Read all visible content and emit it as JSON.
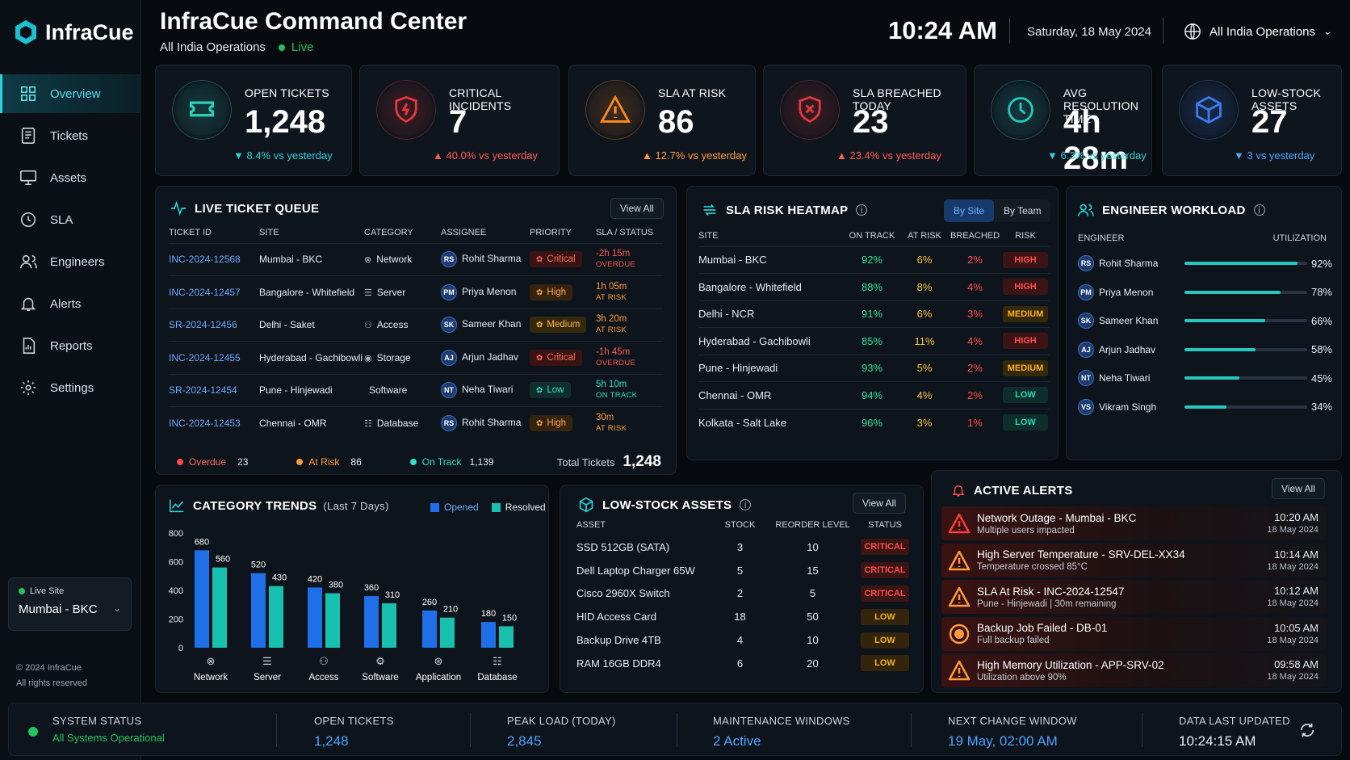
{
  "app": {
    "name": "InfraCue"
  },
  "nav": [
    {
      "label": "Overview",
      "icon": "grid-icon"
    },
    {
      "label": "Tickets",
      "icon": "ticket-icon"
    },
    {
      "label": "Assets",
      "icon": "monitor-icon"
    },
    {
      "label": "SLA",
      "icon": "clock-icon"
    },
    {
      "label": "Engineers",
      "icon": "users-icon"
    },
    {
      "label": "Alerts",
      "icon": "bell-icon"
    },
    {
      "label": "Reports",
      "icon": "report-icon"
    },
    {
      "label": "Settings",
      "icon": "gear-icon"
    }
  ],
  "live_site": {
    "label": "Live Site",
    "value": "Mumbai - BKC"
  },
  "copyright": {
    "line1": "© 2024 InfraCue",
    "line2": "All rights reserved"
  },
  "header": {
    "title": "InfraCue Command Center",
    "subtitle": "All India Operations",
    "live": "Live",
    "time": "10:24 AM",
    "date": "Saturday, 18 May 2024",
    "scope": "All India Operations"
  },
  "kpis": [
    {
      "label": "OPEN TICKETS",
      "value": "1,248",
      "delta": "▼ 8.4% vs yesterday",
      "delta_color": "#2ed0d9",
      "accent": "#2ad1b9"
    },
    {
      "label": "CRITICAL INCIDENTS",
      "value": "7",
      "delta": "▲ 40.0% vs yesterday",
      "delta_color": "#ff5a4f",
      "accent": "#e5393a"
    },
    {
      "label": "SLA AT RISK",
      "value": "86",
      "delta": "▲ 12.7% vs yesterday",
      "delta_color": "#ff9a3c",
      "accent": "#ff8a1f"
    },
    {
      "label": "SLA BREACHED TODAY",
      "value": "23",
      "delta": "▲ 23.4% vs yesterday",
      "delta_color": "#ff5a4f",
      "accent": "#e5393a"
    },
    {
      "label": "AVG RESOLUTION TIME",
      "value": "4h 28m",
      "delta": "▼ 6.3% vs yesterday",
      "delta_color": "#2ed0d9",
      "accent": "#27c7c0"
    },
    {
      "label": "LOW-STOCK ASSETS",
      "value": "27",
      "delta": "▼ 3 vs yesterday",
      "delta_color": "#4aa3ff",
      "accent": "#3d7cf0"
    }
  ],
  "queue": {
    "title": "LIVE TICKET QUEUE",
    "view_all": "View All",
    "headers": [
      "TICKET ID",
      "SITE",
      "CATEGORY",
      "ASSIGNEE",
      "PRIORITY",
      "SLA / STATUS"
    ],
    "rows": [
      {
        "id": "INC-2024-12568",
        "site": "Mumbai - BKC",
        "category": "Network",
        "cat_icon": "network-icon",
        "initials": "RS",
        "assignee": "Rohit Sharma",
        "priority": "Critical",
        "pclass": "critical",
        "sla": "-2h 15m",
        "status": "OVERDUE",
        "scolor": "#ff5a4f"
      },
      {
        "id": "INC-2024-12457",
        "site": "Bangalore - Whitefield",
        "category": "Server",
        "cat_icon": "server-icon",
        "initials": "PM",
        "assignee": "Priya Menon",
        "priority": "High",
        "pclass": "high",
        "sla": "1h 05m",
        "status": "AT RISK",
        "scolor": "#ff9a3c"
      },
      {
        "id": "SR-2024-12456",
        "site": "Delhi - Saket",
        "category": "Access",
        "cat_icon": "access-icon",
        "initials": "SK",
        "assignee": "Sameer Khan",
        "priority": "Medium",
        "pclass": "medium",
        "sla": "3h 20m",
        "status": "AT RISK",
        "scolor": "#ff9a3c"
      },
      {
        "id": "INC-2024-12455",
        "site": "Hyderabad - Gachibowli",
        "category": "Storage",
        "cat_icon": "storage-icon",
        "initials": "AJ",
        "assignee": "Arjun Jadhav",
        "priority": "Critical",
        "pclass": "critical",
        "sla": "-1h 45m",
        "status": "OVERDUE",
        "scolor": "#ff5a4f"
      },
      {
        "id": "SR-2024-12454",
        "site": "Pune - Hinjewadi",
        "category": "Software",
        "cat_icon": "code-icon",
        "initials": "NT",
        "assignee": "Neha Tiwari",
        "priority": "Low",
        "pclass": "low",
        "sla": "5h 10m",
        "status": "ON TRACK",
        "scolor": "#2ee0c8"
      },
      {
        "id": "INC-2024-12453",
        "site": "Chennai - OMR",
        "category": "Database",
        "cat_icon": "database-icon",
        "initials": "RS",
        "assignee": "Rohit Sharma",
        "priority": "High",
        "pclass": "high",
        "sla": "30m",
        "status": "AT RISK",
        "scolor": "#ff9a3c"
      }
    ],
    "footer": {
      "overdue_label": "Overdue",
      "overdue": "23",
      "atrisk_label": "At Risk",
      "atrisk": "86",
      "ontrack_label": "On Track",
      "ontrack": "1,139",
      "total_label": "Total Tickets",
      "total": "1,248"
    }
  },
  "heatmap": {
    "title": "SLA RISK HEATMAP",
    "tab1": "By Site",
    "tab2": "By Team",
    "headers": [
      "SITE",
      "ON TRACK",
      "AT RISK",
      "BREACHED",
      "RISK"
    ],
    "rows": [
      {
        "site": "Mumbai - BKC",
        "on": "92%",
        "at": "6%",
        "br": "2%",
        "risk": "HIGH"
      },
      {
        "site": "Bangalore - Whitefield",
        "on": "88%",
        "at": "8%",
        "br": "4%",
        "risk": "HIGH"
      },
      {
        "site": "Delhi - NCR",
        "on": "91%",
        "at": "6%",
        "br": "3%",
        "risk": "MEDIUM"
      },
      {
        "site": "Hyderabad - Gachibowli",
        "on": "85%",
        "at": "11%",
        "br": "4%",
        "risk": "HIGH"
      },
      {
        "site": "Pune - Hinjewadi",
        "on": "93%",
        "at": "5%",
        "br": "2%",
        "risk": "MEDIUM"
      },
      {
        "site": "Chennai - OMR",
        "on": "94%",
        "at": "4%",
        "br": "2%",
        "risk": "LOW"
      },
      {
        "site": "Kolkata - Salt Lake",
        "on": "96%",
        "at": "3%",
        "br": "1%",
        "risk": "LOW"
      }
    ]
  },
  "workload": {
    "title": "ENGINEER WORKLOAD",
    "col1": "ENGINEER",
    "col2": "UTILIZATION",
    "rows": [
      {
        "initials": "RS",
        "name": "Rohit Sharma",
        "util": "92%",
        "pct": 92
      },
      {
        "initials": "PM",
        "name": "Priya Menon",
        "util": "78%",
        "pct": 78
      },
      {
        "initials": "SK",
        "name": "Sameer Khan",
        "util": "66%",
        "pct": 66
      },
      {
        "initials": "AJ",
        "name": "Arjun Jadhav",
        "util": "58%",
        "pct": 58
      },
      {
        "initials": "NT",
        "name": "Neha Tiwari",
        "util": "45%",
        "pct": 45
      },
      {
        "initials": "VS",
        "name": "Vikram Singh",
        "util": "34%",
        "pct": 34
      }
    ]
  },
  "trends": {
    "title": "CATEGORY TRENDS",
    "subtitle": "(Last 7 Days)",
    "icons": [
      "network-icon",
      "server-icon",
      "access-icon",
      "software-icon",
      "application-icon",
      "database-icon"
    ]
  },
  "chart_data": {
    "type": "bar",
    "categories": [
      "Network",
      "Server",
      "Access",
      "Software",
      "Application",
      "Database"
    ],
    "series": [
      {
        "name": "Opened",
        "values": [
          680,
          520,
          420,
          360,
          260,
          180
        ],
        "color": "#1f6fe8"
      },
      {
        "name": "Resolved",
        "values": [
          560,
          430,
          380,
          310,
          210,
          150
        ],
        "color": "#18c0b0"
      }
    ],
    "yticks": [
      "800",
      "600",
      "400",
      "200",
      "0"
    ],
    "ylim": [
      0,
      800
    ],
    "legend": "top-right",
    "grid": false
  },
  "stock": {
    "title": "LOW-STOCK ASSETS",
    "view_all": "View All",
    "headers": [
      "ASSET",
      "STOCK",
      "REORDER LEVEL",
      "STATUS"
    ],
    "rows": [
      {
        "asset": "SSD 512GB (SATA)",
        "stock": "3",
        "reorder": "10",
        "status": "CRITICAL"
      },
      {
        "asset": "Dell Laptop Charger 65W",
        "stock": "5",
        "reorder": "15",
        "status": "CRITICAL"
      },
      {
        "asset": "Cisco 2960X Switch",
        "stock": "2",
        "reorder": "5",
        "status": "CRITICAL"
      },
      {
        "asset": "HID Access Card",
        "stock": "18",
        "reorder": "50",
        "status": "LOW"
      },
      {
        "asset": "Backup Drive 4TB",
        "stock": "4",
        "reorder": "10",
        "status": "LOW"
      },
      {
        "asset": "RAM 16GB DDR4",
        "stock": "6",
        "reorder": "20",
        "status": "LOW"
      }
    ]
  },
  "alerts": {
    "title": "ACTIVE ALERTS",
    "view_all": "View All",
    "items": [
      {
        "title": "Network Outage - Mumbai - BKC",
        "desc": "Multiple users impacted",
        "time": "10:20 AM",
        "date": "18 May 2024",
        "icon": "warning-icon",
        "color": "#ff3b3b"
      },
      {
        "title": "High Server Temperature - SRV-DEL-XX34",
        "desc": "Temperature crossed 85°C",
        "time": "10:14 AM",
        "date": "18 May 2024",
        "icon": "warning-icon",
        "color": "#ff9a3c"
      },
      {
        "title": "SLA At Risk - INC-2024-12547",
        "desc": "Pune - Hinjewadi | 30m remaining",
        "time": "10:12 AM",
        "date": "18 May 2024",
        "icon": "warning-icon",
        "color": "#ff9a3c"
      },
      {
        "title": "Backup Job Failed - DB-01",
        "desc": "Full backup failed",
        "time": "10:05 AM",
        "date": "18 May 2024",
        "icon": "alert-circle-icon",
        "color": "#ff9a3c"
      },
      {
        "title": "High Memory Utilization - APP-SRV-02",
        "desc": "Utilization above 90%",
        "time": "09:58 AM",
        "date": "18 May 2024",
        "icon": "warning-icon",
        "color": "#ff9a3c"
      }
    ]
  },
  "status": {
    "system_label": "SYSTEM STATUS",
    "system_value": "All Systems Operational",
    "open_label": "OPEN TICKETS",
    "open_value": "1,248",
    "peak_label": "PEAK LOAD (TODAY)",
    "peak_value": "2,845",
    "maint_label": "MAINTENANCE WINDOWS",
    "maint_value": "2 Active",
    "change_label": "NEXT CHANGE WINDOW",
    "change_value": "19 May, 02:00 AM",
    "updated_label": "DATA LAST UPDATED",
    "updated_value": "10:24:15 AM"
  }
}
